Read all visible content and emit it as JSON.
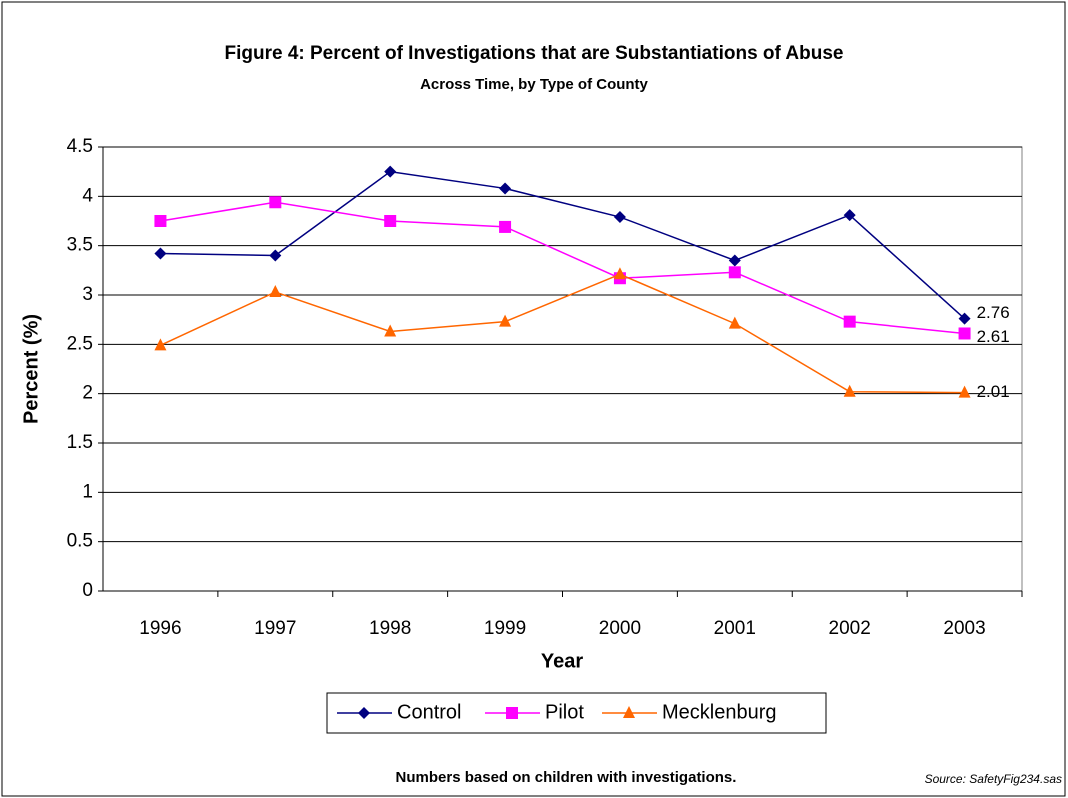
{
  "chart_data": {
    "type": "line",
    "title": "Figure 4: Percent of Investigations that are Substantiations of Abuse",
    "subtitle": "Across Time, by Type of County",
    "x_label": "Year",
    "y_label": "Percent (%)",
    "note": "Numbers based on children with investigations.",
    "source": "Source:  SafetyFig234.sas",
    "categories": [
      "1996",
      "1997",
      "1998",
      "1999",
      "2000",
      "2001",
      "2002",
      "2003"
    ],
    "series": [
      {
        "name": "Control",
        "color": "#000080",
        "marker": "diamond",
        "values": [
          3.42,
          3.4,
          4.25,
          4.08,
          3.79,
          3.35,
          3.81,
          2.76
        ],
        "value_labels": [
          null,
          null,
          null,
          null,
          null,
          null,
          null,
          "2.76"
        ]
      },
      {
        "name": "Pilot",
        "color": "#ff00ff",
        "marker": "square",
        "values": [
          3.75,
          3.94,
          3.75,
          3.69,
          3.17,
          3.23,
          2.73,
          2.61
        ],
        "value_labels": [
          null,
          null,
          null,
          null,
          null,
          null,
          null,
          "2.61"
        ]
      },
      {
        "name": "Mecklenburg",
        "color": "#ff6600",
        "marker": "triangle",
        "values": [
          2.49,
          3.03,
          2.63,
          2.73,
          3.21,
          2.71,
          2.02,
          2.01
        ],
        "value_labels": [
          null,
          null,
          null,
          null,
          null,
          null,
          null,
          "2.01"
        ]
      }
    ],
    "ylim": [
      0,
      4.5
    ],
    "yticks": [
      0,
      0.5,
      1,
      1.5,
      2,
      2.5,
      3,
      3.5,
      4,
      4.5
    ],
    "grid": true,
    "legend": "bottom"
  }
}
